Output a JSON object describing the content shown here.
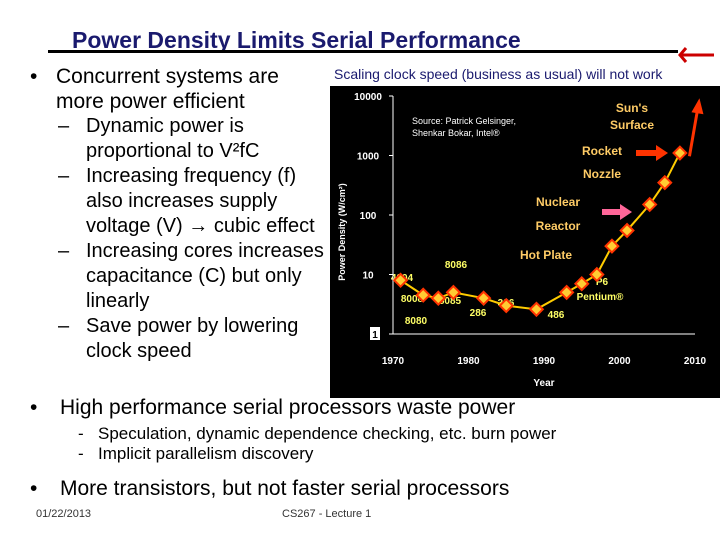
{
  "slide": {
    "title": "Power Density Limits Serial Performance",
    "bullet1": "Concurrent systems are more power efficient",
    "sub_bullets": [
      "Dynamic power is proportional to V²fC",
      "Increasing frequency (f) also increases supply voltage (V) → cubic effect",
      "Increasing cores increases capacitance (C) but only linearly",
      "Save power by lowering clock speed"
    ],
    "bullet2": "High performance serial processors waste power",
    "bullet2_subs": [
      "Speculation, dynamic dependence checking, etc. burn power",
      "Implicit parallelism discovery"
    ],
    "bullet3": "More transistors, but not faster serial processors",
    "footer_date": "01/22/2013",
    "footer_course": "CS267 - Lecture 1"
  },
  "chart_data": {
    "type": "scatter",
    "title": "Scaling clock speed (business as usual) will not work",
    "xlabel": "Year",
    "ylabel": "Power Density (W/cm²)",
    "y_scale": "log",
    "xlim": [
      1970,
      2010
    ],
    "ylim": [
      1,
      10000
    ],
    "x_ticks": [
      "1970",
      "1980",
      "1990",
      "2000",
      "2010"
    ],
    "y_ticks": [
      "1",
      "10",
      "100",
      "1000",
      "10000"
    ],
    "source": "Source: Patrick Gelsinger, Shenkar Bokar, Intel®",
    "points": [
      {
        "x": 1971,
        "y": 8
      },
      {
        "x": 1974,
        "y": 4.5
      },
      {
        "x": 1976,
        "y": 4
      },
      {
        "x": 1978,
        "y": 5
      },
      {
        "x": 1982,
        "y": 4
      },
      {
        "x": 1985,
        "y": 3
      },
      {
        "x": 1989,
        "y": 2.6
      },
      {
        "x": 1993,
        "y": 5
      },
      {
        "x": 1995,
        "y": 7
      },
      {
        "x": 1997,
        "y": 10
      },
      {
        "x": 1999,
        "y": 30
      },
      {
        "x": 2001,
        "y": 55
      },
      {
        "x": 2004,
        "y": 150
      },
      {
        "x": 2006,
        "y": 350
      },
      {
        "x": 2008,
        "y": 1100
      }
    ],
    "annotations": {
      "chips": [
        "4004",
        "8008",
        "8080",
        "8085",
        "8086",
        "286",
        "386",
        "486",
        "P6",
        "Pentium®"
      ],
      "references": [
        "Hot Plate",
        "Nuclear",
        "Reactor",
        "Rocket",
        "Nozzle",
        "Sun's",
        "Surface"
      ]
    },
    "colors": {
      "marker": "#ff3300",
      "marker_fill": "#ffcc33",
      "line": "#ffcc00",
      "plot_bg": "#000000",
      "labels": "#ffff66",
      "reference_labels": "#ffcc66",
      "arrow": "#ff6699",
      "sun_arrow": "#ff3300"
    }
  }
}
